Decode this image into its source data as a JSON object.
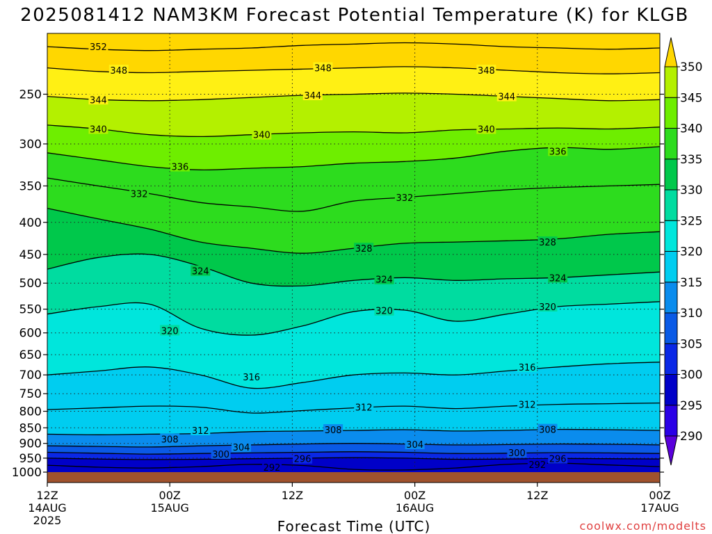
{
  "chart_data": {
    "type": "heatmap",
    "title": "2025081412 NAM3KM Forecast Potential Temperature (K) for KLGB",
    "xlabel": "Forecast Time (UTC)",
    "ylabel": "",
    "credit": "coolwx.com/modelts",
    "y_axis": {
      "scale": "log-pressure",
      "range": [
        1000,
        200
      ],
      "ticks": [
        250,
        300,
        350,
        400,
        450,
        500,
        550,
        600,
        650,
        700,
        750,
        800,
        850,
        900,
        950,
        1000
      ]
    },
    "x_axis": {
      "range_hours": [
        0,
        60
      ],
      "ticks": [
        {
          "hour": 0,
          "label": "12Z",
          "date": "14AUG",
          "year": "2025"
        },
        {
          "hour": 12,
          "label": "00Z",
          "date": "15AUG",
          "year": ""
        },
        {
          "hour": 24,
          "label": "12Z",
          "date": "",
          "year": ""
        },
        {
          "hour": 36,
          "label": "00Z",
          "date": "16AUG",
          "year": ""
        },
        {
          "hour": 48,
          "label": "12Z",
          "date": "",
          "year": ""
        },
        {
          "hour": 60,
          "label": "00Z",
          "date": "17AUG",
          "year": ""
        }
      ]
    },
    "grid": true,
    "colorbar": {
      "placement": "right",
      "levels": [
        290,
        295,
        300,
        305,
        310,
        315,
        320,
        325,
        330,
        335,
        340,
        345,
        350
      ],
      "colors": [
        "#5a00dc",
        "#2a00e6",
        "#0000c8",
        "#0a28e6",
        "#0a5ae6",
        "#0a8ced",
        "#00cdf0",
        "#00e6dc",
        "#00dca0",
        "#00c84b",
        "#2ddc1e",
        "#6eee00",
        "#b4f000",
        "#fff014",
        "#ffd700"
      ]
    },
    "ground_color": "#a0522d",
    "contour_interval_K": 4,
    "series": [
      {
        "theta": 352,
        "p": [
          210,
          212,
          213,
          212,
          211,
          209,
          208,
          207,
          208,
          210,
          211,
          212,
          211
        ]
      },
      {
        "theta": 348,
        "p": [
          227,
          230,
          231,
          230,
          229,
          228,
          227,
          226,
          227,
          229,
          231,
          232,
          231
        ]
      },
      {
        "theta": 344,
        "p": [
          252,
          255,
          256,
          255,
          253,
          251,
          250,
          249,
          250,
          252,
          254,
          256,
          255
        ]
      },
      {
        "theta": 340,
        "p": [
          280,
          284,
          290,
          292,
          290,
          288,
          287,
          288,
          285,
          284,
          283,
          284,
          282
        ]
      },
      {
        "theta": 336,
        "p": [
          310,
          318,
          326,
          330,
          328,
          326,
          322,
          320,
          316,
          308,
          304,
          306,
          303
        ]
      },
      {
        "theta": 332,
        "p": [
          340,
          350,
          360,
          372,
          378,
          384,
          370,
          365,
          360,
          355,
          352,
          350,
          348
        ]
      },
      {
        "theta": 328,
        "p": [
          380,
          395,
          410,
          430,
          440,
          448,
          440,
          432,
          430,
          428,
          425,
          418,
          414
        ]
      },
      {
        "theta": 324,
        "p": [
          475,
          455,
          450,
          470,
          500,
          505,
          495,
          490,
          495,
          492,
          490,
          485,
          480
        ]
      },
      {
        "theta": 320,
        "p": [
          560,
          545,
          540,
          590,
          605,
          585,
          555,
          552,
          575,
          560,
          545,
          540,
          535
        ]
      },
      {
        "theta": 316,
        "p": [
          700,
          690,
          680,
          700,
          735,
          720,
          700,
          695,
          700,
          690,
          680,
          672,
          668
        ]
      },
      {
        "theta": 312,
        "p": [
          795,
          790,
          785,
          788,
          805,
          798,
          790,
          785,
          792,
          785,
          780,
          778,
          776
        ]
      },
      {
        "theta": 308,
        "p": [
          870,
          872,
          870,
          868,
          862,
          860,
          858,
          856,
          860,
          858,
          855,
          856,
          858
        ]
      },
      {
        "theta": 304,
        "p": [
          908,
          910,
          912,
          908,
          905,
          902,
          900,
          902,
          905,
          904,
          902,
          903,
          905
        ]
      },
      {
        "theta": 300,
        "p": [
          930,
          933,
          936,
          934,
          932,
          930,
          928,
          930,
          934,
          933,
          931,
          932,
          934
        ]
      },
      {
        "theta": 296,
        "p": [
          950,
          953,
          955,
          954,
          952,
          950,
          948,
          950,
          954,
          953,
          951,
          952,
          953
        ]
      },
      {
        "theta": 292,
        "p": [
          975,
          982,
          985,
          980,
          972,
          976,
          990,
          992,
          985,
          972,
          968,
          974,
          980
        ]
      }
    ],
    "contour_labels": [
      {
        "text": "352",
        "hour": 5,
        "p": 210
      },
      {
        "text": "348",
        "hour": 7,
        "p": 229
      },
      {
        "text": "348",
        "hour": 27,
        "p": 227
      },
      {
        "text": "348",
        "hour": 43,
        "p": 229
      },
      {
        "text": "344",
        "hour": 5,
        "p": 255
      },
      {
        "text": "344",
        "hour": 26,
        "p": 251
      },
      {
        "text": "344",
        "hour": 45,
        "p": 252
      },
      {
        "text": "340",
        "hour": 5,
        "p": 284
      },
      {
        "text": "340",
        "hour": 21,
        "p": 290
      },
      {
        "text": "340",
        "hour": 43,
        "p": 284
      },
      {
        "text": "336",
        "hour": 13,
        "p": 326
      },
      {
        "text": "336",
        "hour": 50,
        "p": 308
      },
      {
        "text": "332",
        "hour": 9,
        "p": 360
      },
      {
        "text": "332",
        "hour": 35,
        "p": 365
      },
      {
        "text": "328",
        "hour": 31,
        "p": 440
      },
      {
        "text": "328",
        "hour": 49,
        "p": 430
      },
      {
        "text": "324",
        "hour": 15,
        "p": 478
      },
      {
        "text": "324",
        "hour": 33,
        "p": 493
      },
      {
        "text": "324",
        "hour": 50,
        "p": 490
      },
      {
        "text": "320",
        "hour": 12,
        "p": 595
      },
      {
        "text": "320",
        "hour": 33,
        "p": 553
      },
      {
        "text": "320",
        "hour": 49,
        "p": 545
      },
      {
        "text": "316",
        "hour": 20,
        "p": 705
      },
      {
        "text": "316",
        "hour": 47,
        "p": 680
      },
      {
        "text": "312",
        "hour": 31,
        "p": 788
      },
      {
        "text": "312",
        "hour": 47,
        "p": 780
      },
      {
        "text": "312",
        "hour": 15,
        "p": 858
      },
      {
        "text": "308",
        "hour": 28,
        "p": 856
      },
      {
        "text": "308",
        "hour": 49,
        "p": 855
      },
      {
        "text": "308",
        "hour": 12,
        "p": 886
      },
      {
        "text": "304",
        "hour": 19,
        "p": 912
      },
      {
        "text": "304",
        "hour": 36,
        "p": 903
      },
      {
        "text": "300",
        "hour": 17,
        "p": 936
      },
      {
        "text": "300",
        "hour": 46,
        "p": 931
      },
      {
        "text": "296",
        "hour": 25,
        "p": 952
      },
      {
        "text": "296",
        "hour": 50,
        "p": 952
      },
      {
        "text": "292",
        "hour": 22,
        "p": 982
      },
      {
        "text": "292",
        "hour": 48,
        "p": 972
      }
    ]
  }
}
